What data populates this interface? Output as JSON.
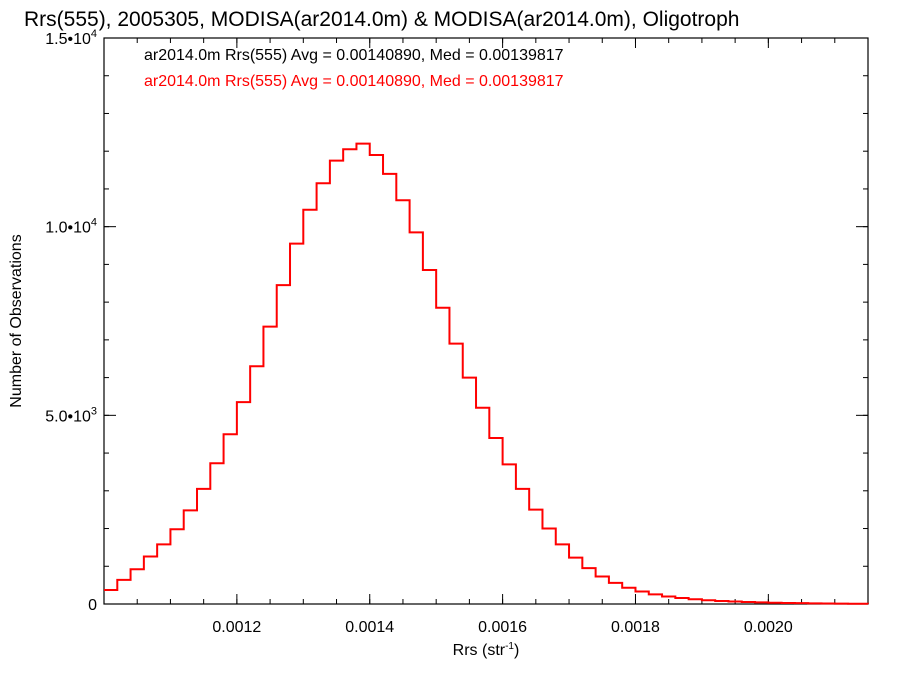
{
  "chart_data": {
    "type": "line",
    "title": "Rrs(555), 2005305, MODISA(ar2014.0m) & MODISA(ar2014.0m), Oligotroph",
    "xlabel": {
      "base": "Rrs (str",
      "superscript": "-1",
      "suffix": ")"
    },
    "ylabel": "Number of Observations",
    "xlim": [
      0.001,
      0.00215
    ],
    "ylim": [
      0,
      15000
    ],
    "x_ticks": [
      {
        "value": 0.0012,
        "label": "0.0012"
      },
      {
        "value": 0.0014,
        "label": "0.0014"
      },
      {
        "value": 0.0016,
        "label": "0.0016"
      },
      {
        "value": 0.0018,
        "label": "0.0018"
      },
      {
        "value": 0.002,
        "label": "0.0020"
      }
    ],
    "y_ticks": [
      {
        "value": 0,
        "mantissa": "0",
        "exponent": ""
      },
      {
        "value": 5000,
        "mantissa": "5.0•10",
        "exponent": "3"
      },
      {
        "value": 10000,
        "mantissa": "1.0•10",
        "exponent": "4"
      },
      {
        "value": 15000,
        "mantissa": "1.5•10",
        "exponent": "4"
      }
    ],
    "x_minor_step": 5e-05,
    "y_minor_step": 1000,
    "grid": false,
    "legend_position": "top-left",
    "legend": [
      {
        "text": "ar2014.0m Rrs(555) Avg = 0.00140890, Med = 0.00139817",
        "color": "#000000"
      },
      {
        "text": "ar2014.0m Rrs(555) Avg = 0.00140890, Med = 0.00139817",
        "color": "#ff0000"
      }
    ],
    "series": [
      {
        "color": "#ff0000",
        "step": true,
        "points": [
          [
            0.001,
            370
          ],
          [
            0.00102,
            640
          ],
          [
            0.00104,
            920
          ],
          [
            0.00106,
            1260
          ],
          [
            0.00108,
            1580
          ],
          [
            0.0011,
            1980
          ],
          [
            0.00112,
            2480
          ],
          [
            0.00114,
            3050
          ],
          [
            0.00116,
            3730
          ],
          [
            0.00118,
            4500
          ],
          [
            0.0012,
            5350
          ],
          [
            0.00122,
            6300
          ],
          [
            0.00124,
            7350
          ],
          [
            0.00126,
            8450
          ],
          [
            0.00128,
            9550
          ],
          [
            0.0013,
            10450
          ],
          [
            0.00132,
            11150
          ],
          [
            0.00134,
            11750
          ],
          [
            0.00136,
            12050
          ],
          [
            0.00138,
            12200
          ],
          [
            0.0014,
            11900
          ],
          [
            0.00142,
            11400
          ],
          [
            0.00144,
            10700
          ],
          [
            0.00146,
            9850
          ],
          [
            0.00148,
            8850
          ],
          [
            0.0015,
            7850
          ],
          [
            0.00152,
            6900
          ],
          [
            0.00154,
            6000
          ],
          [
            0.00156,
            5200
          ],
          [
            0.00158,
            4400
          ],
          [
            0.0016,
            3700
          ],
          [
            0.00162,
            3050
          ],
          [
            0.00164,
            2500
          ],
          [
            0.00166,
            2000
          ],
          [
            0.00168,
            1580
          ],
          [
            0.0017,
            1230
          ],
          [
            0.00172,
            950
          ],
          [
            0.00174,
            730
          ],
          [
            0.00176,
            560
          ],
          [
            0.00178,
            430
          ],
          [
            0.0018,
            330
          ],
          [
            0.00182,
            255
          ],
          [
            0.00184,
            200
          ],
          [
            0.00186,
            160
          ],
          [
            0.00188,
            125
          ],
          [
            0.0019,
            100
          ],
          [
            0.00192,
            80
          ],
          [
            0.00194,
            65
          ],
          [
            0.00196,
            52
          ],
          [
            0.00198,
            42
          ],
          [
            0.002,
            34
          ],
          [
            0.00202,
            28
          ],
          [
            0.00204,
            22
          ],
          [
            0.00206,
            18
          ],
          [
            0.00208,
            14
          ],
          [
            0.0021,
            11
          ],
          [
            0.00212,
            8
          ],
          [
            0.00214,
            6
          ],
          [
            0.00215,
            5
          ]
        ]
      }
    ]
  }
}
